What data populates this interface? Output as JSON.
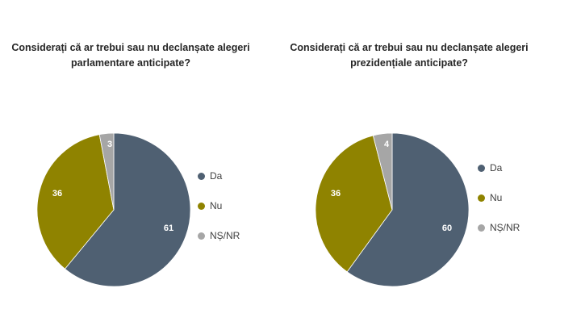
{
  "colors": {
    "da": "#4f6072",
    "nu": "#8f8300",
    "ns_nr": "#a6a6a6"
  },
  "chart_data": [
    {
      "type": "pie",
      "title": "Considerați că ar trebui sau nu declanșate alegeri parlamentare anticipate?",
      "categories": [
        "Da",
        "Nu",
        "NȘ/NR"
      ],
      "values": [
        61,
        36,
        3
      ],
      "legend_position": "right"
    },
    {
      "type": "pie",
      "title": "Considerați că ar trebui sau nu declanșate alegeri prezidențiale anticipate?",
      "categories": [
        "Da",
        "Nu",
        "NȘ/NR"
      ],
      "values": [
        60,
        36,
        4
      ],
      "legend_position": "right"
    }
  ],
  "charts": [
    {
      "title_line1": "Considerați că ar trebui sau nu declanșate alegeri",
      "title_line2": "parlamentare anticipate?",
      "labels": {
        "da": "61",
        "nu": "36",
        "ns_nr": "3"
      },
      "legend": [
        "Da",
        "Nu",
        "NȘ/NR"
      ]
    },
    {
      "title_line1": "Considerați că ar trebui sau nu declanșate alegeri",
      "title_line2": "prezidențiale anticipate?",
      "labels": {
        "da": "60",
        "nu": "36",
        "ns_nr": "4"
      },
      "legend": [
        "Da",
        "Nu",
        "NȘ/NR"
      ]
    }
  ]
}
